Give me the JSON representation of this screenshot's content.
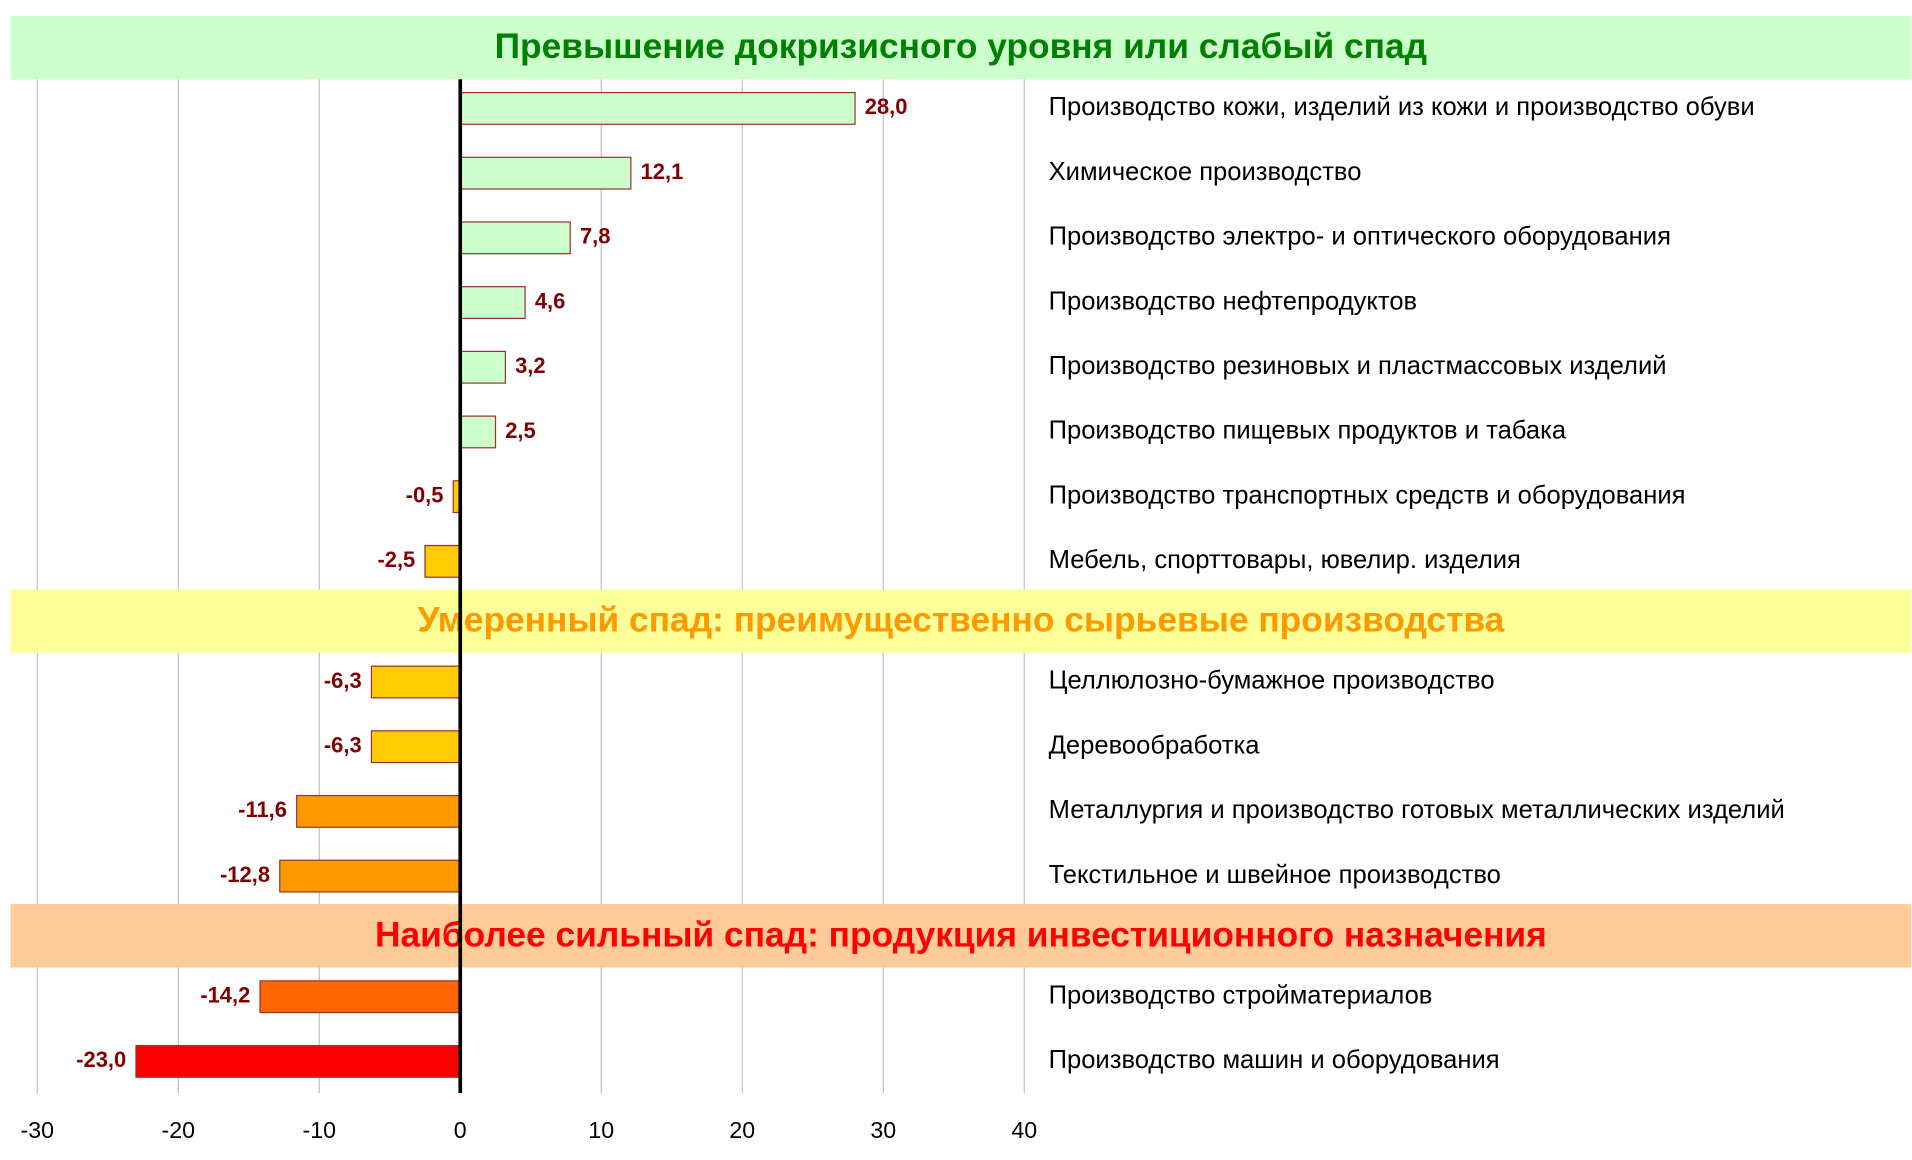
{
  "chart_data": {
    "type": "hbar",
    "xlim": [
      -30,
      40
    ],
    "xticks": [
      -30,
      -20,
      -10,
      0,
      10,
      20,
      30,
      40
    ],
    "grid": true,
    "sections": [
      {
        "title": "Превышение докризисного уровня или слабый спад",
        "band_color": "#ccffcc",
        "title_color": "#008000",
        "categories": [
          "Производство кожи, изделий из кожи и производство обуви",
          "Химическое производство",
          "Производство электро- и оптического оборудования",
          "Производство нефтепродуктов",
          "Производство резиновых и пластмассовых изделий",
          "Производство пищевых продуктов и табака",
          "Производство транспортных средств и оборудования",
          "Мебель, спорттовары, ювелир. изделия"
        ],
        "values": [
          28.0,
          12.1,
          7.8,
          4.6,
          3.2,
          2.5,
          -0.5,
          -2.5
        ],
        "value_labels": [
          "28,0",
          "12,1",
          "7,8",
          "4,6",
          "3,2",
          "2,5",
          "-0,5",
          "-2,5"
        ],
        "colors": [
          "#ccffcc",
          "#ccffcc",
          "#ccffcc",
          "#ccffcc",
          "#ccffcc",
          "#ccffcc",
          "#ffcc00",
          "#ffcc00"
        ]
      },
      {
        "title": "Умеренный спад: преимущественно сырьевые производства",
        "band_color": "#ffff99",
        "title_color": "#ff9900",
        "categories": [
          "Целлюлозно-бумажное производство",
          "Деревообработка",
          "Металлургия и производство готовых металлических изделий",
          "Текстильное и швейное производство"
        ],
        "values": [
          -6.3,
          -6.3,
          -11.6,
          -12.8
        ],
        "value_labels": [
          "-6,3",
          "-6,3",
          "-11,6",
          "-12,8"
        ],
        "colors": [
          "#ffcc00",
          "#ffcc00",
          "#ff9900",
          "#ff9900"
        ]
      },
      {
        "title": "Наиболее сильный спад: продукция инвестиционного назначения",
        "band_color": "#ffcc99",
        "title_color": "#ff0000",
        "categories": [
          "Производство стройматериалов",
          "Производство машин и оборудования"
        ],
        "values": [
          -14.2,
          -23.0
        ],
        "value_labels": [
          "-14,2",
          "-23,0"
        ],
        "colors": [
          "#ff6600",
          "#ff0000"
        ]
      }
    ]
  }
}
